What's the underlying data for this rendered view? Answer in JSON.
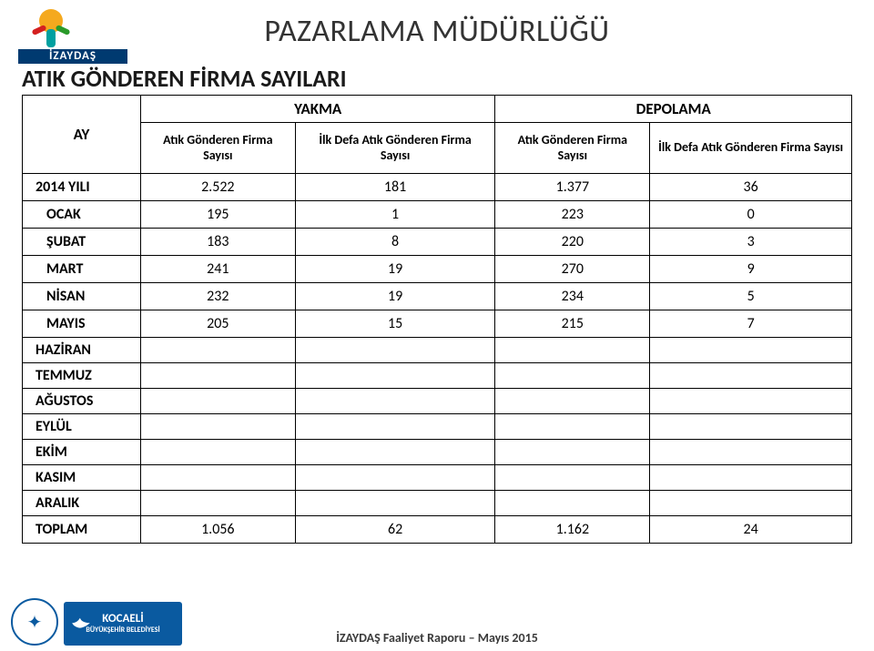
{
  "header": {
    "logo_text": "İZAYDAŞ",
    "title": "PAZARLAMA MÜDÜRLÜĞÜ",
    "section_title": "ATIK GÖNDEREN FİRMA SAYILARI"
  },
  "table": {
    "col_ay": "AY",
    "group_yakma": "YAKMA",
    "group_depolama": "DEPOLAMA",
    "sub_a": "Atık Gönderen Firma Sayısı",
    "sub_b": "İlk Defa Atık Gönderen Firma Sayısı",
    "sub_c": "Atık Gönderen Firma Sayısı",
    "sub_d": "İlk Defa Atık Gönderen Firma Sayısı",
    "rows": [
      {
        "label": "2014 YILI",
        "a": "2.522",
        "b": "181",
        "c": "1.377",
        "d": "36",
        "indent": false
      },
      {
        "label": "OCAK",
        "a": "195",
        "b": "1",
        "c": "223",
        "d": "0",
        "indent": true
      },
      {
        "label": "ŞUBAT",
        "a": "183",
        "b": "8",
        "c": "220",
        "d": "3",
        "indent": true
      },
      {
        "label": "MART",
        "a": "241",
        "b": "19",
        "c": "270",
        "d": "9",
        "indent": true
      },
      {
        "label": "NİSAN",
        "a": "232",
        "b": "19",
        "c": "234",
        "d": "5",
        "indent": true
      },
      {
        "label": "MAYIS",
        "a": "205",
        "b": "15",
        "c": "215",
        "d": "7",
        "indent": true
      }
    ],
    "empty_rows": [
      {
        "label": "HAZİRAN"
      },
      {
        "label": "TEMMUZ"
      },
      {
        "label": "AĞUSTOS"
      },
      {
        "label": "EYLÜL"
      },
      {
        "label": "EKİM"
      },
      {
        "label": "KASIM"
      },
      {
        "label": "ARALIK"
      }
    ],
    "total": {
      "label": "TOPLAM",
      "a": "1.056",
      "b": "62",
      "c": "1.162",
      "d": "24"
    }
  },
  "footer": {
    "note": "İZAYDAŞ Faaliyet Raporu – Mayıs 2015",
    "kocaeli_line1": "KOCAELİ",
    "kocaeli_line2": "BÜYÜKŞEHİR BELEDİYESİ"
  },
  "style": {
    "title_color": "#333333",
    "border_color": "#000000",
    "kocaeli_bg": "#0a5aa0",
    "logo_bar_bg": "#003a70",
    "title_fontsize": 34,
    "section_fontsize": 26,
    "cell_fontsize": 16
  }
}
